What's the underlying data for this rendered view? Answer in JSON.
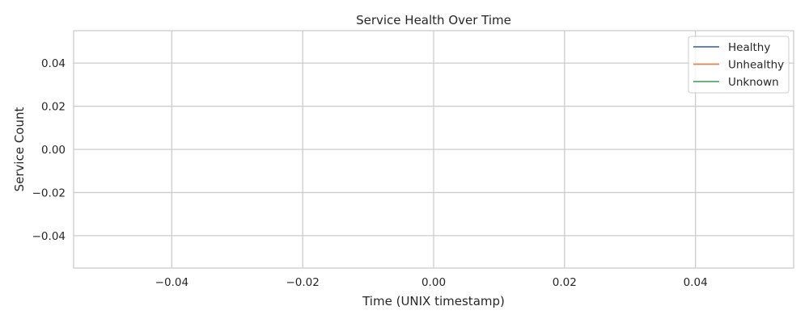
{
  "chart_data": {
    "type": "line",
    "title": "Service Health Over Time",
    "xlabel": "Time (UNIX timestamp)",
    "ylabel": "Service Count",
    "xlim": [
      -0.055,
      0.055
    ],
    "ylim": [
      -0.055,
      0.055
    ],
    "x_ticks": [
      -0.04,
      -0.02,
      0.0,
      0.02,
      0.04
    ],
    "x_tick_labels": [
      "−0.04",
      "−0.02",
      "0.00",
      "0.02",
      "0.04"
    ],
    "y_ticks": [
      0.04,
      0.02,
      0.0,
      -0.02,
      -0.04
    ],
    "y_tick_labels": [
      "0.04",
      "0.02",
      "0.00",
      "−0.02",
      "−0.04"
    ],
    "grid": true,
    "legend_position": "top-right",
    "series": [
      {
        "name": "Healthy",
        "color": "#4c72b0",
        "x": [],
        "y": []
      },
      {
        "name": "Unhealthy",
        "color": "#dd8452",
        "x": [],
        "y": []
      },
      {
        "name": "Unknown",
        "color": "#55a868",
        "x": [],
        "y": []
      }
    ]
  }
}
